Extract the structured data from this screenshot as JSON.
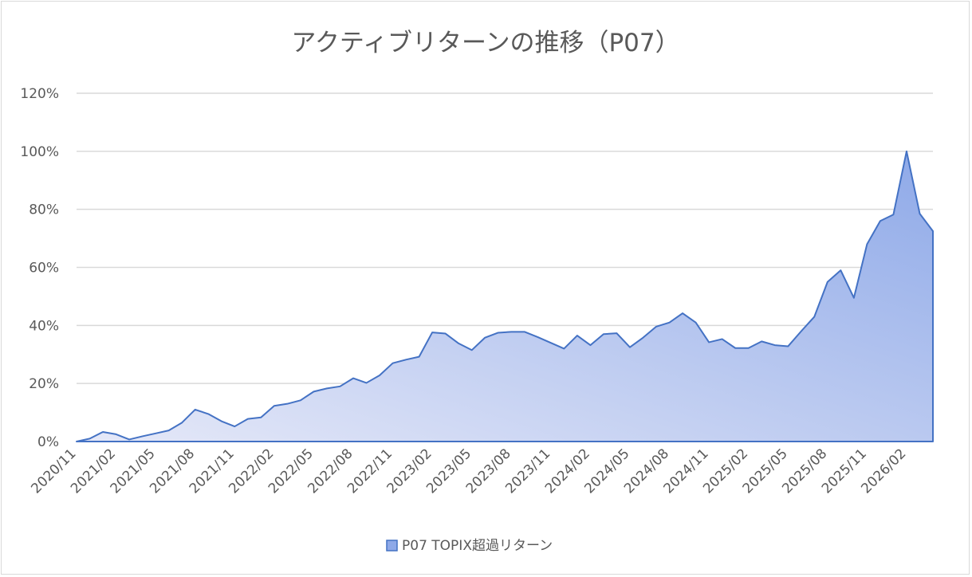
{
  "chart_data": {
    "type": "area",
    "title": "アクティブリターンの推移（P07）",
    "xlabel": "",
    "ylabel": "",
    "ylim": [
      0,
      120
    ],
    "yticks": [
      "0%",
      "20%",
      "40%",
      "60%",
      "80%",
      "100%",
      "120%"
    ],
    "ytick_values": [
      0,
      20,
      40,
      60,
      80,
      100,
      120
    ],
    "xtick_labels": [
      "2020/11",
      "2021/02",
      "2021/05",
      "2021/08",
      "2021/11",
      "2022/02",
      "2022/05",
      "2022/08",
      "2022/11",
      "2023/02",
      "2023/05",
      "2023/08",
      "2023/11",
      "2024/02",
      "2024/05",
      "2024/08",
      "2024/11",
      "2025/02",
      "2025/05",
      "2025/08",
      "2025/11",
      "2026/02"
    ],
    "x": [
      "2020/11",
      "2020/12",
      "2021/01",
      "2021/02",
      "2021/03",
      "2021/04",
      "2021/05",
      "2021/06",
      "2021/07",
      "2021/08",
      "2021/09",
      "2021/10",
      "2021/11",
      "2021/12",
      "2022/01",
      "2022/02",
      "2022/03",
      "2022/04",
      "2022/05",
      "2022/06",
      "2022/07",
      "2022/08",
      "2022/09",
      "2022/10",
      "2022/11",
      "2022/12",
      "2023/01",
      "2023/02",
      "2023/03",
      "2023/04",
      "2023/05",
      "2023/06",
      "2023/07",
      "2023/08",
      "2023/09",
      "2023/10",
      "2023/11",
      "2023/12",
      "2024/01",
      "2024/02",
      "2024/03",
      "2024/04",
      "2024/05",
      "2024/06",
      "2024/07",
      "2024/08",
      "2024/09",
      "2024/10",
      "2024/11",
      "2024/12",
      "2025/01",
      "2025/02",
      "2025/03",
      "2025/04",
      "2025/05",
      "2025/06",
      "2025/07",
      "2025/08",
      "2025/09",
      "2025/10",
      "2025/11",
      "2025/12",
      "2026/01",
      "2026/02",
      "2026/03",
      "2026/04"
    ],
    "series": [
      {
        "name": "P07 TOPIX超過リターン",
        "values": [
          0,
          1,
          3.3,
          2.5,
          0.7,
          1.8,
          2.8,
          3.8,
          6.5,
          11,
          9.5,
          7,
          5.2,
          7.8,
          8.3,
          12.3,
          13,
          14.2,
          17.2,
          18.3,
          19,
          21.8,
          20.2,
          22.8,
          27,
          28.2,
          29.2,
          37.6,
          37.2,
          33.8,
          31.5,
          35.8,
          37.5,
          37.8,
          37.8,
          36,
          34,
          32,
          36.5,
          33.2,
          37,
          37.3,
          32.5,
          35.8,
          39.6,
          41,
          44.2,
          41,
          34.2,
          35.3,
          32.2,
          32.2,
          34.5,
          33.2,
          32.8,
          38,
          43,
          55,
          59,
          49.5,
          68,
          76,
          78.2,
          100,
          78.5,
          72.5
        ]
      }
    ],
    "grid": true,
    "legend_position": "bottom",
    "colors": {
      "line": "#4472c4",
      "fill_light": "#e6e9f8",
      "fill_dark": "#8ea9e8",
      "grid": "#d9d9d9",
      "text": "#595959"
    }
  }
}
